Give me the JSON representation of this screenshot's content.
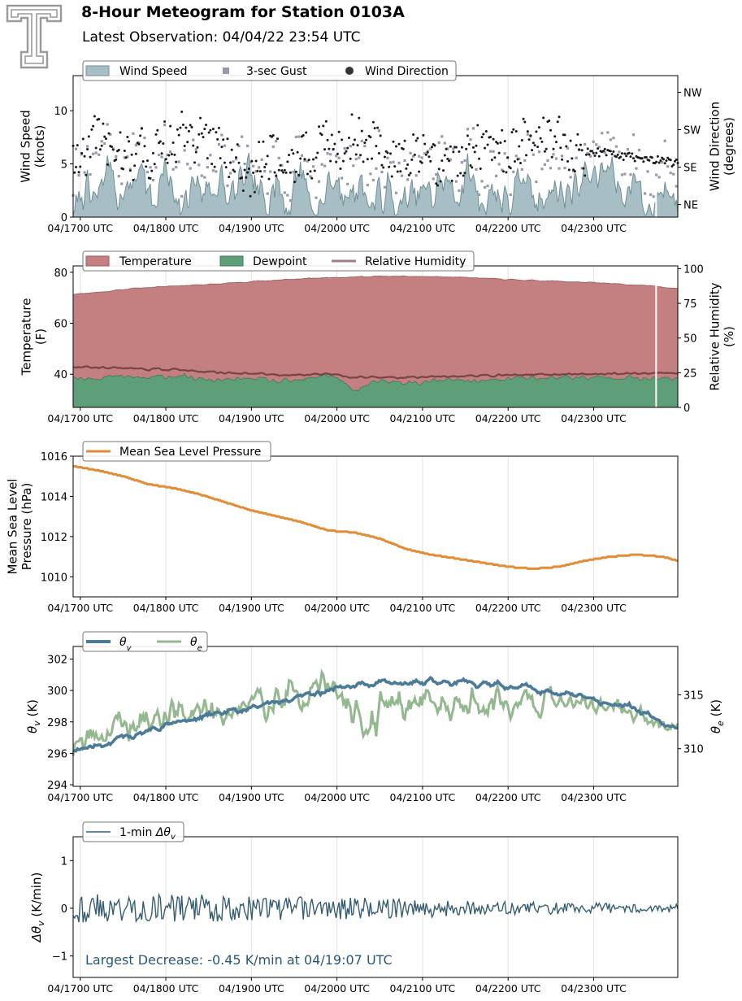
{
  "header": {
    "title": "8-Hour Meteogram for Station 0103A",
    "subtitle": "Latest Observation: 04/04/22 23:54 UTC"
  },
  "colors": {
    "wind_speed_fill": "#a7bfc4",
    "wind_speed_line": "#6f8f96",
    "gust": "#9a98ad",
    "direction": "#1a1a1a",
    "temperature": "#c47f80",
    "temperature_line": "#9c5a5c",
    "dewpoint": "#5e9f7a",
    "dewpoint_line": "#3e7a58",
    "rh": "#6b3a3c",
    "pressure": "#e48b33",
    "theta_v": "#4b7b98",
    "theta_e": "#94b88f",
    "dtheta": "#375e70",
    "annotation": "#2b5777",
    "grid": "#e2e2e2"
  },
  "chart_data": [
    {
      "id": "wind",
      "type": "area",
      "x_start_utc": "04/16:55",
      "x_end_utc": "04/23:59",
      "xticks": [
        "04/1700 UTC",
        "04/1800 UTC",
        "04/1900 UTC",
        "04/2000 UTC",
        "04/2100 UTC",
        "04/2200 UTC",
        "04/2300 UTC"
      ],
      "ylabel": "Wind Speed\n(knots)",
      "ylim": [
        0,
        13.3
      ],
      "yticks": [
        0,
        5,
        10
      ],
      "y2label": "Wind Direction\n(degrees)",
      "y2lim": [
        15,
        355
      ],
      "y2ticks": [
        {
          "value": 45,
          "label": "NE"
        },
        {
          "value": 135,
          "label": "SE"
        },
        {
          "value": 225,
          "label": "SW"
        },
        {
          "value": 315,
          "label": "NW"
        }
      ],
      "legend": [
        "Wind Speed",
        "3-sec Gust",
        "Wind Direction"
      ],
      "legend_position": "top-left",
      "series_summary": {
        "wind_speed_range_knots": [
          0.2,
          6.5
        ],
        "gust_range_knots": [
          1,
          10.5
        ],
        "direction_first_deg": 170,
        "direction_last_deg": 145,
        "direction_range_deg": [
          20,
          345
        ]
      }
    },
    {
      "id": "thermo",
      "type": "area",
      "ylabel": "Temperature\n(F)",
      "ylim": [
        27,
        82.5
      ],
      "yticks": [
        40,
        60,
        80
      ],
      "y2label": "Relative Humidity\n(%)",
      "y2lim": [
        0,
        102
      ],
      "y2ticks": [
        0,
        25,
        50,
        75,
        100
      ],
      "legend": [
        "Temperature",
        "Dewpoint",
        "Relative Humidity"
      ],
      "legend_position": "top-left",
      "temperature_f": {
        "x": [
          16.92,
          17.25,
          17.6,
          18.0,
          18.5,
          19.0,
          19.5,
          20.0,
          20.5,
          20.85,
          21.2,
          21.6,
          22.0,
          22.5,
          23.0,
          23.5,
          23.98
        ],
        "y": [
          71.5,
          72.3,
          73.6,
          74.6,
          75.2,
          76.4,
          77.3,
          78.1,
          78.4,
          78.4,
          78.2,
          77.8,
          77.2,
          76.6,
          75.9,
          75.0,
          73.8
        ]
      },
      "dewpoint_f": {
        "x": [
          16.92,
          17.2,
          17.5,
          17.8,
          18.1,
          18.4,
          18.7,
          19.0,
          19.3,
          19.6,
          19.85,
          20.0,
          20.2,
          20.4,
          20.6,
          20.9,
          21.2,
          21.5,
          21.8,
          22.1,
          22.4,
          22.7,
          23.0,
          23.3,
          23.6,
          23.98
        ],
        "y": [
          38.5,
          38.8,
          39.0,
          38.5,
          39.5,
          38.0,
          37.5,
          38.5,
          37.0,
          37.5,
          40.0,
          38.5,
          33.5,
          36.5,
          37.0,
          36.5,
          37.5,
          37.5,
          37.5,
          38.5,
          38.5,
          39.0,
          38.5,
          39.0,
          38.0,
          38.5
        ]
      },
      "rh_pct": {
        "x": [
          16.92,
          17.2,
          17.5,
          17.8,
          18.1,
          18.4,
          18.7,
          19.0,
          19.3,
          19.6,
          19.85,
          20.0,
          20.2,
          20.4,
          20.6,
          20.9,
          21.2,
          21.5,
          21.8,
          22.1,
          22.4,
          22.7,
          23.0,
          23.3,
          23.6,
          23.98
        ],
        "y": [
          29,
          29,
          28.5,
          27.5,
          27.5,
          25.5,
          25,
          24.5,
          23.5,
          23.5,
          24.5,
          23.5,
          21,
          22,
          21.5,
          22,
          22.5,
          22.5,
          23,
          23.5,
          23.5,
          24,
          24,
          24.5,
          24.5,
          25
        ]
      }
    },
    {
      "id": "pressure",
      "type": "line",
      "ylabel": "Mean Sea Level\nPressure (hPa)",
      "ylim": [
        1009,
        1016
      ],
      "yticks": [
        1010,
        1012,
        1014,
        1016
      ],
      "legend": [
        "Mean Sea Level Pressure"
      ],
      "legend_position": "top-left",
      "series": [
        {
          "name": "Mean Sea Level Pressure",
          "x": [
            16.92,
            17.2,
            17.5,
            17.8,
            18.1,
            18.4,
            18.7,
            19.0,
            19.3,
            19.6,
            19.9,
            20.2,
            20.5,
            20.8,
            21.1,
            21.4,
            21.7,
            22.0,
            22.3,
            22.6,
            22.9,
            23.2,
            23.5,
            23.8,
            23.98
          ],
          "y": [
            1015.5,
            1015.3,
            1015.0,
            1014.6,
            1014.4,
            1014.1,
            1013.7,
            1013.3,
            1013.0,
            1012.7,
            1012.3,
            1012.2,
            1011.9,
            1011.4,
            1011.1,
            1010.9,
            1010.7,
            1010.5,
            1010.4,
            1010.5,
            1010.8,
            1011.0,
            1011.1,
            1011.0,
            1010.8
          ]
        }
      ]
    },
    {
      "id": "theta",
      "type": "line",
      "ylabel": "θv (K)",
      "ylim": [
        293.9,
        302.8
      ],
      "yticks": [
        294,
        296,
        298,
        300,
        302
      ],
      "y2label": "θe (K)",
      "y2lim": [
        306.5,
        319.5
      ],
      "y2ticks": [
        310,
        315
      ],
      "legend": [
        "θv",
        "θe"
      ],
      "legend_position": "top-left",
      "series": [
        {
          "name": "θv",
          "x": [
            16.92,
            17.2,
            17.5,
            17.8,
            18.1,
            18.4,
            18.7,
            19.0,
            19.3,
            19.6,
            19.9,
            20.1,
            20.4,
            20.7,
            21.0,
            21.3,
            21.6,
            21.9,
            22.2,
            22.5,
            22.8,
            23.1,
            23.4,
            23.7,
            23.98
          ],
          "y": [
            296.3,
            296.6,
            297.0,
            297.4,
            298.0,
            298.3,
            298.6,
            298.9,
            299.3,
            299.6,
            300.1,
            300.3,
            300.4,
            300.5,
            300.6,
            300.6,
            300.5,
            300.2,
            300.1,
            299.9,
            299.6,
            299.3,
            299.0,
            298.4,
            297.5
          ]
        },
        {
          "name": "θe",
          "x": [
            16.92,
            17.2,
            17.5,
            17.8,
            18.1,
            18.4,
            18.7,
            19.0,
            19.3,
            19.6,
            19.85,
            20.0,
            20.2,
            20.3,
            20.6,
            20.9,
            21.2,
            21.5,
            21.8,
            22.1,
            22.4,
            22.7,
            23.0,
            23.3,
            23.6,
            23.98
          ],
          "y": [
            311.0,
            311.3,
            312.0,
            312.5,
            313.2,
            313.5,
            313.6,
            314.0,
            314.5,
            315.0,
            316.3,
            315.5,
            313.0,
            311.5,
            314.5,
            314.2,
            314.3,
            314.0,
            314.4,
            314.5,
            314.4,
            314.3,
            314.1,
            313.6,
            313.0,
            312.0
          ]
        }
      ]
    },
    {
      "id": "dtheta",
      "type": "line",
      "ylabel": "Δθv (K/min)",
      "ylim": [
        -1.45,
        1.5
      ],
      "yticks": [
        -1,
        0,
        1
      ],
      "legend": [
        "1-min Δθv"
      ],
      "legend_position": "top-left",
      "amplitude_envelope": {
        "x": [
          16.92,
          19.0,
          20.5,
          22.0,
          23.98
        ],
        "amp": [
          0.32,
          0.27,
          0.22,
          0.14,
          0.09
        ]
      },
      "annotation": "Largest Decrease: -0.45 K/min at 04/19:07 UTC"
    }
  ]
}
